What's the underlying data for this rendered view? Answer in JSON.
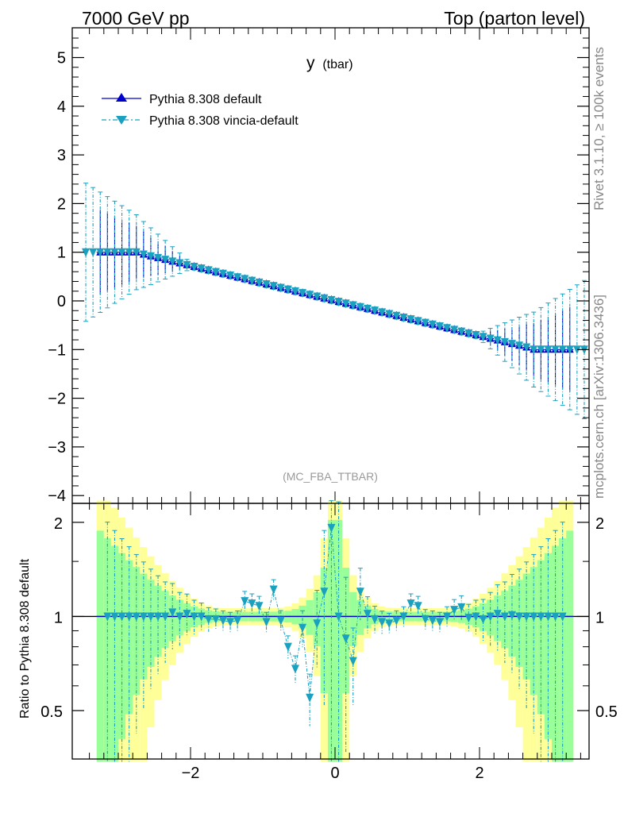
{
  "header": {
    "left": "7000 GeV pp",
    "right": "Top (parton level)"
  },
  "side": {
    "rivet": "Rivet 3.1.10, ≥ 100k events",
    "mcplots": "mcplots.cern.ch [arXiv:1306.3436]"
  },
  "plot_title": {
    "main": "y",
    "sub": "(tbar)"
  },
  "analysis_tag": "(MC_FBA_TTBAR)",
  "colors": {
    "default": "#0000cc",
    "vincia": "#1ba1c0",
    "band_green": "#99ff99",
    "band_yellow": "#ffff99"
  },
  "chart_data": [
    {
      "type": "scatter",
      "title": "y (tbar)",
      "xlim": [
        -3.5,
        3.5
      ],
      "ylim": [
        -4,
        5.6
      ],
      "yticks": [
        "5",
        "4",
        "3",
        "2",
        "1",
        "0",
        "−1",
        "−2",
        "−3",
        "−4"
      ],
      "xlabel": "",
      "ylabel": "",
      "grid": false,
      "legend_position": "top-left",
      "series": [
        {
          "name": "Pythia 8.308 default",
          "marker": "triangle-up",
          "style": "solid",
          "x_range": [
            -3.3,
            3.3
          ],
          "bins": 66,
          "y_at_edges": [
            1.0,
            -1.0
          ],
          "plateau": "y = 1 for x < -2.75, y = -1 for x > 2.75",
          "central_slope": -0.36,
          "rel_error_edges": 0.85,
          "rel_error_center": 0.05
        },
        {
          "name": "Pythia 8.308 vincia-default",
          "marker": "triangle-down",
          "style": "dash-dot",
          "x_range": [
            -3.5,
            3.5
          ],
          "bins": 70,
          "y_at_edges": [
            1.0,
            -1.0
          ],
          "plateau": "y = 1 for x < -2.75, y = -1 for x > 2.75",
          "central_slope": -0.36,
          "rel_error_edges": 1.4,
          "rel_error_center": 0.07
        }
      ]
    },
    {
      "type": "scatter",
      "xlim": [
        -3.5,
        3.5
      ],
      "ylim": [
        0.35,
        2.3
      ],
      "scale": "log",
      "ylabel": "Ratio to Pythia 8.308 default",
      "xticks": [
        "−2",
        "0",
        "2"
      ],
      "yticks": [
        "2",
        "1",
        "0.5"
      ],
      "reference": 1.0,
      "series": [
        {
          "name": "vincia-default / default",
          "x": [
            -3.15,
            -3.05,
            -2.95,
            -2.85,
            -2.75,
            -2.65,
            -2.55,
            -2.45,
            -2.35,
            -2.25,
            -2.15,
            -2.05,
            -1.95,
            -1.85,
            -1.75,
            -1.65,
            -1.55,
            -1.45,
            -1.35,
            -1.25,
            -1.15,
            -1.05,
            -0.95,
            -0.85,
            -0.75,
            -0.65,
            -0.55,
            -0.45,
            -0.35,
            -0.25,
            -0.15,
            -0.05,
            0.05,
            0.15,
            0.25,
            0.35,
            0.45,
            0.55,
            0.65,
            0.75,
            0.85,
            0.95,
            1.05,
            1.15,
            1.25,
            1.35,
            1.45,
            1.55,
            1.65,
            1.75,
            1.85,
            1.95,
            2.05,
            2.15,
            2.25,
            2.35,
            2.45,
            2.55,
            2.65,
            2.75,
            2.85,
            2.95,
            3.05,
            3.15
          ],
          "y": [
            1.0,
            1.0,
            1.0,
            1.0,
            1.0,
            1.0,
            1.0,
            1.0,
            1.0,
            1.03,
            1.0,
            1.02,
            1.0,
            1.0,
            0.98,
            0.98,
            0.97,
            0.96,
            0.97,
            1.12,
            1.1,
            1.08,
            0.96,
            1.22,
            0.97,
            0.8,
            0.68,
            0.92,
            0.55,
            0.95,
            1.2,
            1.92,
            1.0,
            0.85,
            0.72,
            1.2,
            1.02,
            0.98,
            0.96,
            0.95,
            0.97,
            1.0,
            1.1,
            1.08,
            0.98,
            0.97,
            0.96,
            1.0,
            1.05,
            1.07,
            0.99,
            1.0,
            0.98,
            1.0,
            1.02,
            1.0,
            1.01,
            1.0,
            1.0,
            1.0,
            1.0,
            1.0,
            1.0,
            1.0
          ]
        }
      ]
    }
  ]
}
